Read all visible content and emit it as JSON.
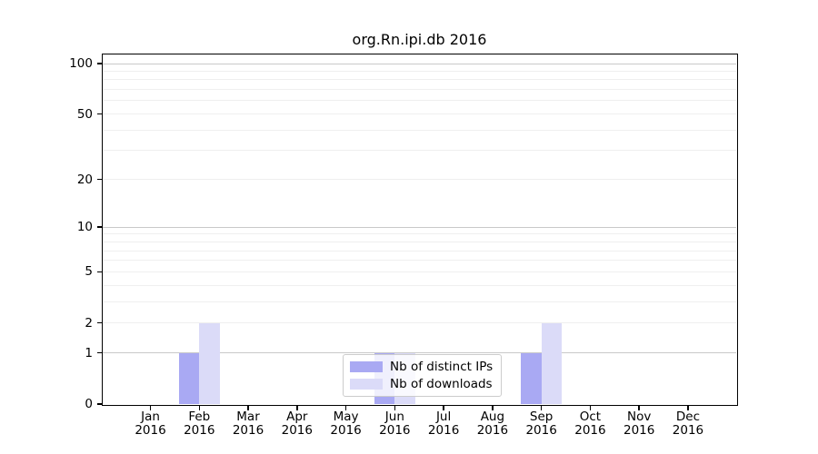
{
  "chart_data": {
    "type": "bar",
    "title": "org.Rn.ipi.db 2016",
    "categories": [
      "Jan 2016",
      "Feb 2016",
      "Mar 2016",
      "Apr 2016",
      "May 2016",
      "Jun 2016",
      "Jul 2016",
      "Aug 2016",
      "Sep 2016",
      "Oct 2016",
      "Nov 2016",
      "Dec 2016"
    ],
    "x_ticks": {
      "months": [
        "Jan",
        "Feb",
        "Mar",
        "Apr",
        "May",
        "Jun",
        "Jul",
        "Aug",
        "Sep",
        "Oct",
        "Nov",
        "Dec"
      ],
      "year": "2016"
    },
    "series": [
      {
        "name": "Nb of distinct IPs",
        "color": "#a9a9f3",
        "values": [
          0,
          1,
          0,
          0,
          0,
          1,
          0,
          0,
          1,
          0,
          0,
          0
        ]
      },
      {
        "name": "Nb of downloads",
        "color": "#dbdbf8",
        "values": [
          0,
          2,
          0,
          0,
          0,
          1,
          0,
          0,
          2,
          0,
          0,
          0
        ]
      }
    ],
    "y_axis": {
      "scale": "log1p",
      "lim": [
        0,
        100
      ],
      "tick_values": [
        0,
        1,
        2,
        5,
        10,
        20,
        50,
        100
      ],
      "tick_labels": [
        "0",
        "1",
        "2",
        "5",
        "10",
        "20",
        "50",
        "100"
      ],
      "major_gridlines": [
        1,
        10,
        100
      ],
      "minor_gridlines": [
        2,
        3,
        4,
        5,
        6,
        7,
        8,
        9,
        20,
        30,
        40,
        50,
        60,
        70,
        80,
        90
      ]
    },
    "legend": {
      "position": "lower center",
      "entries": [
        "Nb of distinct IPs",
        "Nb of downloads"
      ]
    },
    "grid": true
  },
  "colors": {
    "grid_major": "#c9c9c9",
    "grid_minor": "#efefef",
    "spine": "#000000",
    "background": "#ffffff",
    "distinct_ips_bar": "#a9a9f3",
    "downloads_bar": "#dbdbf8"
  }
}
